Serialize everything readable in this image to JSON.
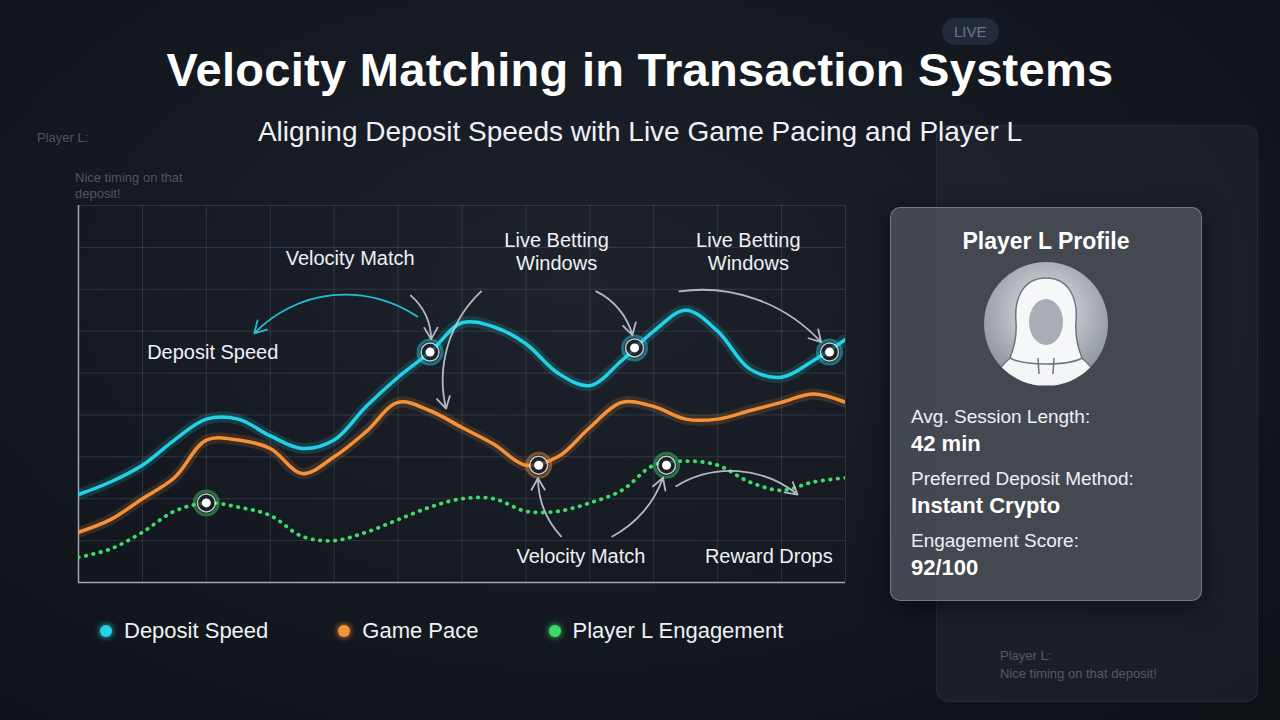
{
  "chart_data": {
    "type": "line",
    "title": "Velocity Matching in Transaction Systems",
    "subtitle": "Aligning Deposit Speeds with Live Game Pacing and Player L",
    "x": [
      0,
      0.5,
      1,
      1.5,
      2,
      2.5,
      3,
      3.5,
      4,
      4.5,
      5,
      5.5,
      6,
      6.5,
      7,
      7.5,
      8,
      8.5,
      9,
      9.5,
      10,
      10.5,
      11,
      11.5,
      12
    ],
    "series": [
      {
        "name": "Deposit Speed",
        "color": "#22d3e6",
        "line_style": "solid",
        "values": [
          2.1,
          2.4,
          2.8,
          3.4,
          3.9,
          3.9,
          3.5,
          3.2,
          3.4,
          4.2,
          4.9,
          5.5,
          6.2,
          6.1,
          5.7,
          5.0,
          4.7,
          5.3,
          6.0,
          6.5,
          6.0,
          5.1,
          4.9,
          5.3,
          5.8
        ]
      },
      {
        "name": "Game Pace",
        "color": "#f5923a",
        "line_style": "solid",
        "values": [
          1.2,
          1.5,
          2.0,
          2.5,
          3.4,
          3.4,
          3.2,
          2.6,
          3.0,
          3.6,
          4.3,
          4.1,
          3.7,
          3.3,
          2.8,
          3.0,
          3.7,
          4.3,
          4.2,
          3.9,
          3.9,
          4.1,
          4.3,
          4.5,
          4.3
        ]
      },
      {
        "name": "Player L Engagement",
        "color": "#3ddc6a",
        "line_style": "dotted",
        "values": [
          0.6,
          0.8,
          1.2,
          1.7,
          1.9,
          1.8,
          1.6,
          1.1,
          1.0,
          1.2,
          1.5,
          1.8,
          2.0,
          2.0,
          1.7,
          1.7,
          1.9,
          2.2,
          2.8,
          2.9,
          2.8,
          2.4,
          2.2,
          2.4,
          2.5
        ]
      }
    ],
    "highlights": [
      {
        "series": "Deposit Speed",
        "x": 5.5,
        "y": 5.5
      },
      {
        "series": "Deposit Speed",
        "x": 8.7,
        "y": 5.6
      },
      {
        "series": "Deposit Speed",
        "x": 11.75,
        "y": 5.5
      },
      {
        "series": "Game Pace",
        "x": 7.2,
        "y": 2.8
      },
      {
        "series": "Player L Engagement",
        "x": 2,
        "y": 1.9
      },
      {
        "series": "Player L Engagement",
        "x": 9.2,
        "y": 2.8
      }
    ],
    "annotations": [
      "Velocity Match",
      "Deposit Speed",
      "Live Betting Windows",
      "Live Betting Windows",
      "Velocity Match",
      "Reward Drops"
    ],
    "xlim": [
      0,
      12
    ],
    "xticks": [
      0,
      1,
      2,
      3,
      4,
      5,
      6,
      7,
      8,
      9,
      10,
      11,
      12
    ],
    "ylim": [
      0,
      9
    ],
    "yticks": [
      0,
      1,
      2,
      3,
      4,
      5,
      6,
      7,
      8,
      9
    ],
    "grid": true,
    "tick_labels": false,
    "legend": "bottom"
  },
  "profile_card": {
    "title": "Player L Profile",
    "fields": [
      {
        "label": "Avg. Session Length:",
        "value": "42 min"
      },
      {
        "label": "Preferred Deposit Method:",
        "value": "Instant Crypto"
      },
      {
        "label": "Engagement Score:",
        "value": "92/100"
      }
    ]
  },
  "chat": {
    "live": "LIVE",
    "user": "Player L:",
    "message": "Nice timing on that deposit!"
  }
}
